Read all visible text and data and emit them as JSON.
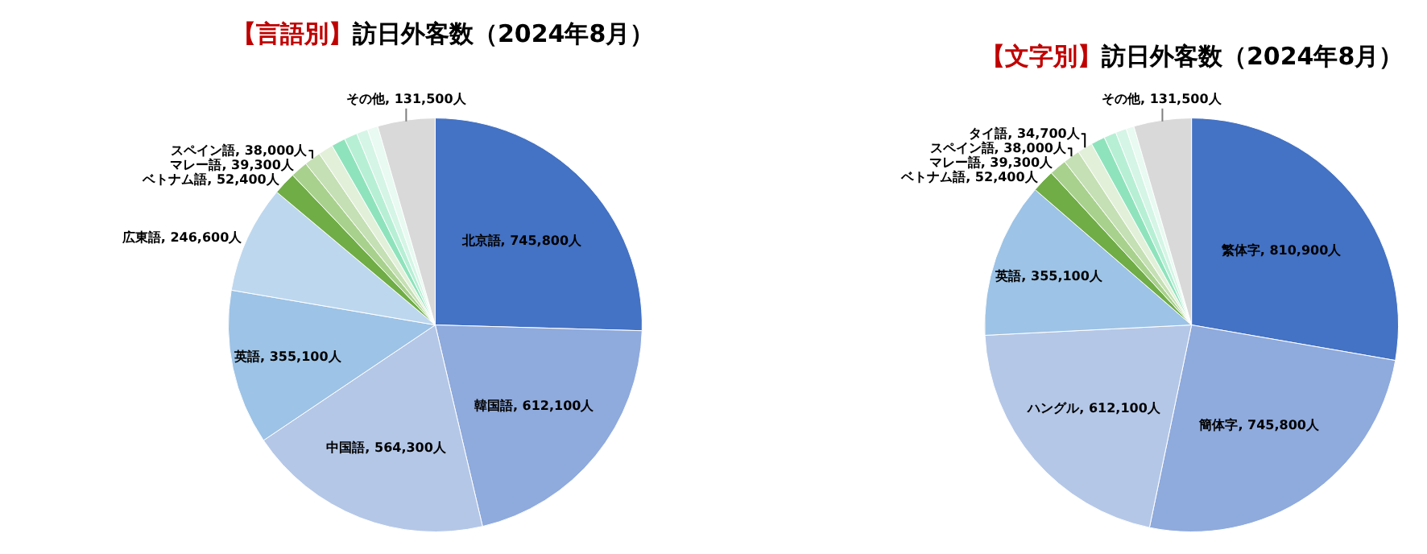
{
  "chart_data": [
    {
      "type": "pie",
      "title": "【言語別】訪日外客数（2024年8月）",
      "categories": [
        "北京語",
        "韓国語",
        "中国語",
        "英語",
        "広東語",
        "ベトナム語",
        "マレー語",
        "スペイン語",
        null,
        null,
        null,
        null,
        null,
        "その他"
      ],
      "values": [
        745800,
        612100,
        564300,
        355100,
        246600,
        52400,
        39300,
        38000,
        34000,
        32000,
        30000,
        26000,
        24000,
        131500
      ],
      "value_labels": [
        "745,800人",
        "612,100人",
        "564,300人",
        "355,100人",
        "246,600人",
        "52,400人",
        "39,300人",
        "38,000人",
        null,
        null,
        null,
        null,
        null,
        "131,500人"
      ],
      "colors": [
        "#4472c4",
        "#8faadc",
        "#b4c7e7",
        "#9dc3e6",
        "#bdd7ee",
        "#70ad47",
        "#a9d18e",
        "#c5e0b4",
        "#e2f0d9",
        "#8fe3bc",
        "#b7efd5",
        "#d5f5e6",
        "#e8faf1",
        "#d9d9d9"
      ]
    },
    {
      "type": "pie",
      "title": "【文字別】訪日外客数（2024年8月）",
      "categories": [
        "繁体字",
        "簡体字",
        "ハングル",
        "英語",
        "ベトナム語",
        "マレー語",
        "スペイン語",
        "タイ語",
        null,
        null,
        null,
        null,
        "その他"
      ],
      "values": [
        810900,
        745800,
        612100,
        355100,
        52400,
        39300,
        38000,
        34700,
        32000,
        28000,
        25000,
        18000,
        131500
      ],
      "value_labels": [
        "810,900人",
        "745,800人",
        "612,100人",
        "355,100人",
        "52,400人",
        "39,300人",
        "38,000人",
        "34,700人",
        null,
        null,
        null,
        null,
        "131,500人"
      ],
      "colors": [
        "#4472c4",
        "#8faadc",
        "#b4c7e7",
        "#9dc3e6",
        "#70ad47",
        "#a9d18e",
        "#c5e0b4",
        "#e2f0d9",
        "#8fe3bc",
        "#b7efd5",
        "#d5f5e6",
        "#e8faf1",
        "#d9d9d9"
      ]
    }
  ]
}
